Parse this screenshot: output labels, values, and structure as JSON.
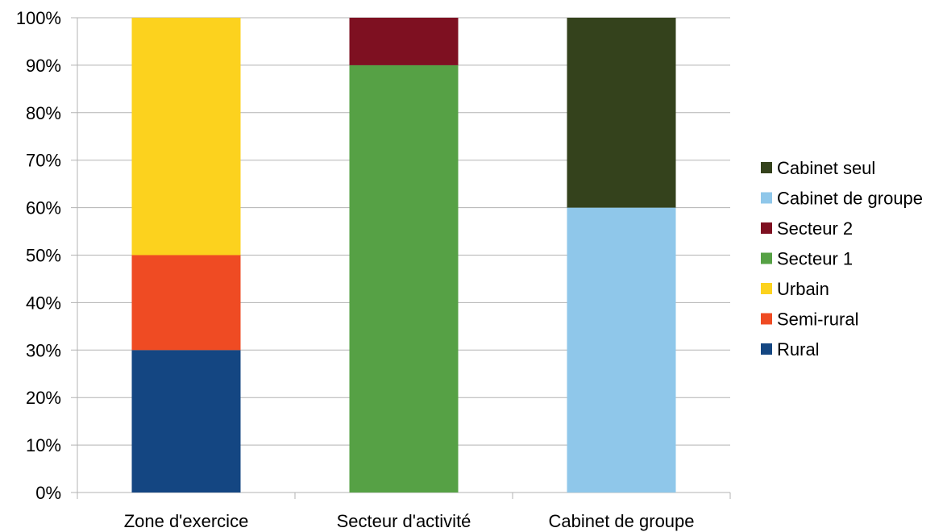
{
  "chart_data": {
    "type": "bar",
    "stacked": true,
    "normalized": true,
    "categories": [
      "Zone d'exercice",
      "Secteur d'activité",
      "Cabinet de groupe"
    ],
    "ylim": [
      0,
      100
    ],
    "ytick_labels": [
      "0%",
      "10%",
      "20%",
      "30%",
      "40%",
      "50%",
      "60%",
      "70%",
      "80%",
      "90%",
      "100%"
    ],
    "grid": true,
    "legend_position": "right",
    "series": [
      {
        "name": "Rural",
        "color": "#144682",
        "values": [
          30,
          0,
          0
        ]
      },
      {
        "name": "Semi-rural",
        "color": "#ef4b23",
        "values": [
          20,
          0,
          0
        ]
      },
      {
        "name": "Urbain",
        "color": "#fcd21e",
        "values": [
          50,
          0,
          0
        ]
      },
      {
        "name": "Secteur 1",
        "color": "#56a145",
        "values": [
          0,
          90,
          0
        ]
      },
      {
        "name": "Secteur 2",
        "color": "#7e1021",
        "values": [
          0,
          10,
          0
        ]
      },
      {
        "name": "Cabinet de groupe",
        "color": "#8fc7ea",
        "values": [
          0,
          0,
          60
        ]
      },
      {
        "name": "Cabinet seul",
        "color": "#34421c",
        "values": [
          0,
          0,
          40
        ]
      }
    ],
    "legend_order": [
      "Cabinet seul",
      "Cabinet de groupe",
      "Secteur 2",
      "Secteur 1",
      "Urbain",
      "Semi-rural",
      "Rural"
    ]
  }
}
